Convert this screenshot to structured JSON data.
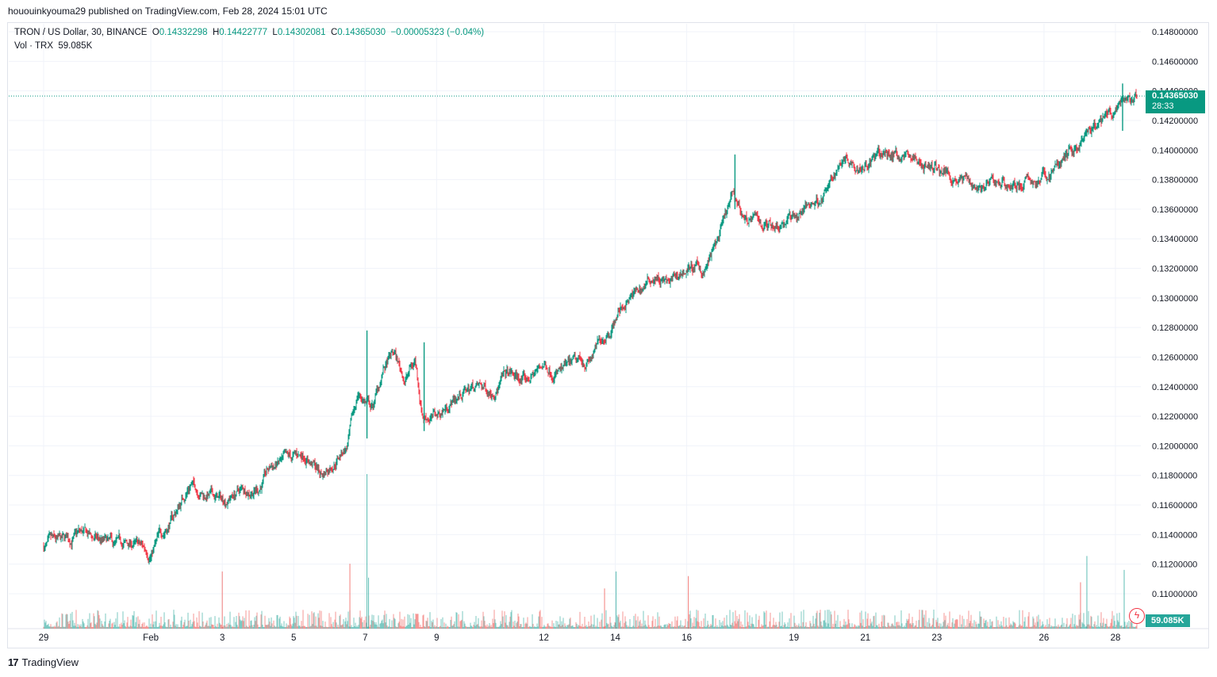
{
  "header": {
    "published": "hououinkyouma29 published on TradingView.com, Feb 28, 2024 15:01 UTC"
  },
  "legend": {
    "symbol": "TRON / US Dollar, 30, BINANCE",
    "o_label": "O",
    "o_value": "0.14332298",
    "h_label": "H",
    "h_value": "0.14422777",
    "l_label": "L",
    "l_value": "0.14302081",
    "c_label": "C",
    "c_value": "0.14365030",
    "change": "−0.00005323 (−0.04%)",
    "vol_label": "Vol · TRX",
    "vol_value": "59.085K"
  },
  "price_badge": {
    "price": "0.14365030",
    "countdown": "28:33"
  },
  "vol_badge": "59.085K",
  "footer": {
    "brand": "TradingView",
    "logo_text": "17"
  },
  "colors": {
    "up": "#089981",
    "down": "#f23645",
    "vol_up": "#26a69a",
    "vol_down": "#ef5350",
    "grid": "#f0f3fa"
  },
  "chart_data": {
    "type": "candlestick",
    "title": "TRON / US Dollar, 30, BINANCE",
    "y_axis": {
      "range": [
        0.108,
        0.149
      ],
      "ticks": [
        "0.14800000",
        "0.14600000",
        "0.14400000",
        "0.14200000",
        "0.14000000",
        "0.13800000",
        "0.13600000",
        "0.13400000",
        "0.13200000",
        "0.13000000",
        "0.12800000",
        "0.12600000",
        "0.12400000",
        "0.12200000",
        "0.12000000",
        "0.11800000",
        "0.11600000",
        "0.11400000",
        "0.11200000",
        "0.11000000"
      ]
    },
    "x_axis": {
      "range_days": [
        0,
        31.1
      ],
      "ticks": [
        {
          "label": "29",
          "day": 0
        },
        {
          "label": "Feb",
          "day": 3
        },
        {
          "label": "3",
          "day": 5
        },
        {
          "label": "5",
          "day": 7
        },
        {
          "label": "7",
          "day": 9
        },
        {
          "label": "9",
          "day": 11
        },
        {
          "label": "12",
          "day": 14
        },
        {
          "label": "14",
          "day": 16
        },
        {
          "label": "16",
          "day": 18
        },
        {
          "label": "19",
          "day": 21
        },
        {
          "label": "21",
          "day": 23
        },
        {
          "label": "23",
          "day": 25
        },
        {
          "label": "26",
          "day": 28
        },
        {
          "label": "28",
          "day": 30
        }
      ]
    },
    "price_path": [
      [
        0.0,
        0.1132
      ],
      [
        0.5,
        0.1133
      ],
      [
        1.0,
        0.114
      ],
      [
        1.5,
        0.1136
      ],
      [
        2.0,
        0.1131
      ],
      [
        2.5,
        0.1133
      ],
      [
        3.0,
        0.1128
      ],
      [
        3.3,
        0.114
      ],
      [
        3.7,
        0.1155
      ],
      [
        4.1,
        0.1175
      ],
      [
        4.5,
        0.1168
      ],
      [
        5.0,
        0.1163
      ],
      [
        5.5,
        0.117
      ],
      [
        6.0,
        0.1172
      ],
      [
        6.4,
        0.1186
      ],
      [
        6.9,
        0.1189
      ],
      [
        7.3,
        0.1195
      ],
      [
        7.8,
        0.118
      ],
      [
        8.2,
        0.1193
      ],
      [
        8.5,
        0.12
      ],
      [
        8.8,
        0.1235
      ],
      [
        9.2,
        0.1225
      ],
      [
        9.5,
        0.125
      ],
      [
        9.8,
        0.1262
      ],
      [
        10.1,
        0.1245
      ],
      [
        10.4,
        0.1258
      ],
      [
        10.6,
        0.1222
      ],
      [
        11.0,
        0.122
      ],
      [
        11.5,
        0.1232
      ],
      [
        12.0,
        0.124
      ],
      [
        12.5,
        0.1238
      ],
      [
        13.0,
        0.1248
      ],
      [
        13.5,
        0.1243
      ],
      [
        14.0,
        0.1255
      ],
      [
        14.5,
        0.125
      ],
      [
        15.0,
        0.1255
      ],
      [
        15.3,
        0.1258
      ],
      [
        15.7,
        0.1275
      ],
      [
        16.2,
        0.1295
      ],
      [
        16.7,
        0.1305
      ],
      [
        17.1,
        0.1315
      ],
      [
        17.5,
        0.1308
      ],
      [
        18.0,
        0.132
      ],
      [
        18.5,
        0.1318
      ],
      [
        18.9,
        0.134
      ],
      [
        19.3,
        0.1368
      ],
      [
        19.6,
        0.1355
      ],
      [
        20.1,
        0.135
      ],
      [
        20.6,
        0.1352
      ],
      [
        21.2,
        0.1358
      ],
      [
        21.6,
        0.1365
      ],
      [
        22.0,
        0.1375
      ],
      [
        22.4,
        0.1398
      ],
      [
        22.8,
        0.1392
      ],
      [
        23.3,
        0.1395
      ],
      [
        23.8,
        0.1398
      ],
      [
        24.3,
        0.1395
      ],
      [
        24.8,
        0.1388
      ],
      [
        25.3,
        0.1385
      ],
      [
        25.8,
        0.138
      ],
      [
        26.3,
        0.1375
      ],
      [
        26.8,
        0.1378
      ],
      [
        27.3,
        0.1377
      ],
      [
        27.8,
        0.1378
      ],
      [
        28.2,
        0.1385
      ],
      [
        28.7,
        0.1398
      ],
      [
        29.1,
        0.1405
      ],
      [
        29.5,
        0.1415
      ],
      [
        30.0,
        0.1425
      ],
      [
        30.3,
        0.1432
      ],
      [
        30.6,
        0.14365
      ]
    ],
    "spikes": [
      {
        "day": 9.05,
        "high": 0.1278,
        "low": 0.1205
      },
      {
        "day": 10.65,
        "high": 0.127,
        "low": 0.121
      },
      {
        "day": 19.35,
        "high": 0.1397,
        "low": 0.136
      },
      {
        "day": 30.2,
        "high": 0.1445,
        "low": 0.1413
      }
    ],
    "last_price": 0.1436503,
    "volume": {
      "last": "59.085K",
      "spikes": [
        {
          "day": 9.05,
          "value": 1.0
        },
        {
          "day": 8.55,
          "value": 0.42
        },
        {
          "day": 9.05,
          "value": 0.33
        },
        {
          "day": 5.0,
          "value": 0.37
        },
        {
          "day": 16.0,
          "value": 0.37
        },
        {
          "day": 18.0,
          "value": 0.34
        },
        {
          "day": 29.2,
          "value": 0.47
        },
        {
          "day": 29.0,
          "value": 0.3
        },
        {
          "day": 30.2,
          "value": 0.38
        },
        {
          "day": 15.7,
          "value": 0.26
        }
      ]
    }
  }
}
